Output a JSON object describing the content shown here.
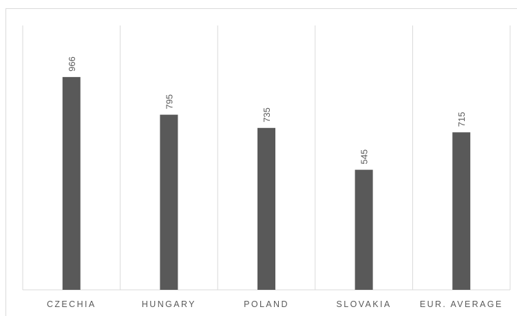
{
  "chart_data": {
    "type": "bar",
    "categories": [
      "CZECHIA",
      "HUNGARY",
      "POLAND",
      "SLOVAKIA",
      "EUR. AVERAGE"
    ],
    "values": [
      966,
      795,
      735,
      545,
      715
    ],
    "color": "#595959",
    "ylim": [
      0,
      1200
    ]
  }
}
